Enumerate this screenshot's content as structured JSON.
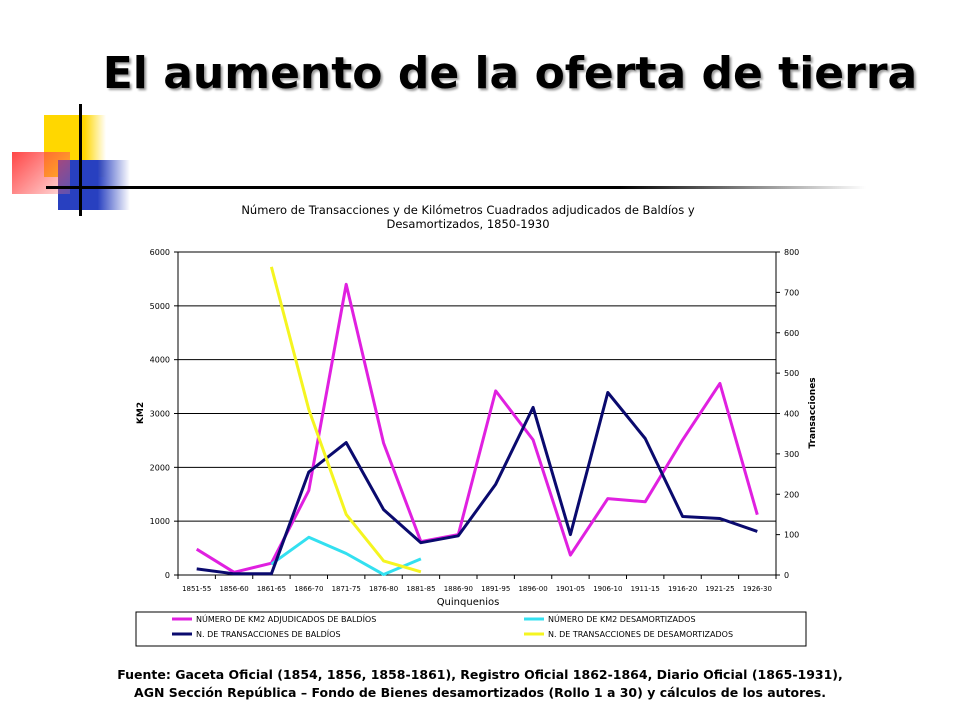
{
  "slide": {
    "title": "El aumento de la oferta de tierra",
    "source_line1": "Fuente: Gaceta Oficial (1854, 1856, 1858-1861), Registro Oficial 1862-1864, Diario Oficial (1865-1931),",
    "source_line2": "AGN Sección República – Fondo de Bienes desamortizados (Rollo 1 a 30) y cálculos de los autores."
  },
  "colors": {
    "magenta": "#e020e0",
    "cyan": "#33e0f0",
    "navy": "#0a0a6e",
    "yellow": "#f5f520",
    "deco_yellow": "#ffd700",
    "deco_blue": "#3050c8",
    "deco_red": "#ff3a3a"
  },
  "chart_data": {
    "type": "line",
    "title_line1": "Número de Transacciones y de Kilómetros Cuadrados adjudicados de Baldíos y",
    "title_line2": "Desamortizados, 1850-1930",
    "xlabel": "Quinquenios",
    "ylabel_left": "KM2",
    "ylabel_right": "Transacciones",
    "ylim_left": [
      0,
      6000
    ],
    "ylim_right": [
      0,
      800
    ],
    "yticks_left": [
      "0",
      "1000",
      "2000",
      "3000",
      "4000",
      "5000",
      "6000"
    ],
    "yticks_right": [
      "0",
      "100",
      "200",
      "300",
      "400",
      "500",
      "600",
      "700",
      "800"
    ],
    "categories": [
      "1851-55",
      "1856-60",
      "1861-65",
      "1866-70",
      "1871-75",
      "1876-80",
      "1881-85",
      "1886-90",
      "1891-95",
      "1896-00",
      "1901-05",
      "1906-10",
      "1911-15",
      "1916-20",
      "1921-25",
      "1926-30"
    ],
    "grid": "horizontal",
    "legend_position": "bottom",
    "series": [
      {
        "name": "NÚMERO DE KM2 ADJUDICADOS DE BALDÍOS",
        "axis": "left",
        "color": "#e020e0",
        "values": [
          480,
          50,
          220,
          1570,
          5400,
          2450,
          620,
          750,
          3420,
          2510,
          370,
          1420,
          1360,
          2510,
          3560,
          1120
        ]
      },
      {
        "name": "NÚMERO DE KM2 DESAMORTIZADOS",
        "axis": "left",
        "color": "#33e0f0",
        "values": [
          null,
          null,
          200,
          700,
          400,
          10,
          300,
          null,
          null,
          null,
          null,
          null,
          null,
          null,
          null,
          null
        ]
      },
      {
        "name": "N. DE TRANSACCIONES DE BALDÍOS",
        "axis": "right",
        "color": "#0a0a6e",
        "values": [
          15,
          3,
          3,
          255,
          328,
          162,
          80,
          97,
          225,
          415,
          100,
          452,
          338,
          145,
          140,
          108
        ]
      },
      {
        "name": "N. DE TRANSACCIONES DE DESAMORTIZADOS",
        "axis": "right",
        "color": "#f5f520",
        "values": [
          null,
          null,
          763,
          410,
          150,
          35,
          8,
          null,
          null,
          null,
          null,
          null,
          null,
          null,
          null,
          null
        ]
      }
    ]
  }
}
